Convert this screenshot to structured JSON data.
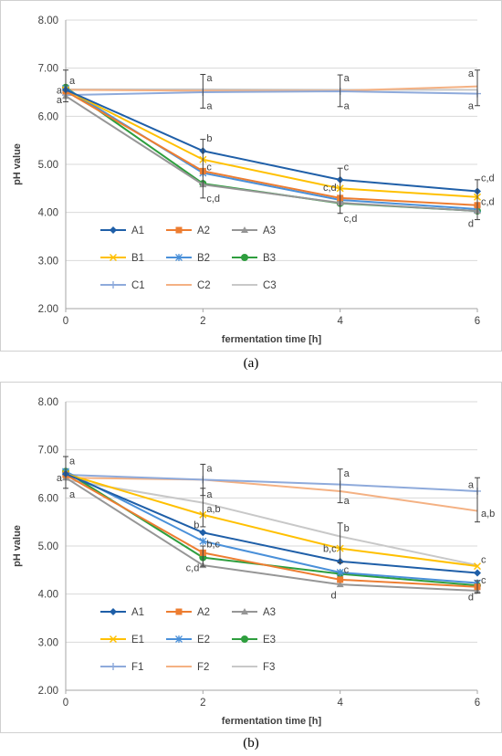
{
  "chart_data": [
    {
      "type": "line",
      "panel_label": "(a)",
      "xlabel": "fermentation time [h]",
      "ylabel": "pH value",
      "x": [
        0,
        2,
        4,
        6
      ],
      "x_tick_labels": [
        "0",
        "2",
        "4",
        "6"
      ],
      "ylim": [
        2.0,
        8.0
      ],
      "y_tick_labels": [
        "2.00",
        "3.00",
        "4.00",
        "5.00",
        "6.00",
        "7.00",
        "8.00"
      ],
      "grid": "horizontal",
      "legend_placement": "inside bottom-left, 3 columns",
      "series": [
        {
          "name": "A1",
          "color": "#1f5fa8",
          "marker": "diamond",
          "values": [
            6.55,
            5.28,
            4.68,
            4.44
          ]
        },
        {
          "name": "A2",
          "color": "#ed7d31",
          "marker": "square",
          "values": [
            6.52,
            4.86,
            4.3,
            4.15
          ]
        },
        {
          "name": "A3",
          "color": "#969696",
          "marker": "triangle",
          "values": [
            6.42,
            4.58,
            4.2,
            4.03
          ]
        },
        {
          "name": "B1",
          "color": "#ffc000",
          "marker": "x",
          "values": [
            6.55,
            5.1,
            4.5,
            4.32
          ]
        },
        {
          "name": "B2",
          "color": "#4a90d9",
          "marker": "star",
          "values": [
            6.58,
            4.82,
            4.26,
            4.07
          ]
        },
        {
          "name": "B3",
          "color": "#2e9e3e",
          "marker": "circle",
          "values": [
            6.6,
            4.6,
            4.19,
            4.03
          ]
        },
        {
          "name": "C1",
          "color": "#8eaadb",
          "marker": "plus",
          "values": [
            6.44,
            6.5,
            6.52,
            6.47
          ]
        },
        {
          "name": "C2",
          "color": "#f4b183",
          "marker": "none",
          "values": [
            6.55,
            6.53,
            6.53,
            6.62
          ]
        },
        {
          "name": "C3",
          "color": "#c8c8c8",
          "marker": "none",
          "values": [
            6.56,
            6.56,
            6.55,
            6.55
          ]
        }
      ],
      "error_bars": [
        {
          "x": 0,
          "low": 6.3,
          "high": 6.96
        },
        {
          "x": 2,
          "low": 6.17,
          "high": 6.87
        },
        {
          "x": 4,
          "low": 6.2,
          "high": 6.86
        },
        {
          "x": 6,
          "low": 6.22,
          "high": 6.96
        },
        {
          "x": 2,
          "low": 4.3,
          "high": 5.52
        },
        {
          "x": 4,
          "low": 3.98,
          "high": 4.92
        },
        {
          "x": 6,
          "low": 3.85,
          "high": 4.68
        }
      ],
      "annotations": [
        {
          "text": "a",
          "x": 0,
          "y": 6.75,
          "side": "right"
        },
        {
          "text": "a",
          "x": 0,
          "y": 6.55,
          "side": "left"
        },
        {
          "text": "a",
          "x": 0,
          "y": 6.35,
          "side": "left"
        },
        {
          "text": "a",
          "x": 2,
          "y": 6.8,
          "side": "right"
        },
        {
          "text": "a",
          "x": 2,
          "y": 6.22,
          "side": "right"
        },
        {
          "text": "a",
          "x": 4,
          "y": 6.8,
          "side": "right"
        },
        {
          "text": "a",
          "x": 4,
          "y": 6.22,
          "side": "right"
        },
        {
          "text": "a",
          "x": 6,
          "y": 6.9,
          "side": "left"
        },
        {
          "text": "a",
          "x": 6,
          "y": 6.22,
          "side": "left"
        },
        {
          "text": "b",
          "x": 2,
          "y": 5.55,
          "side": "right"
        },
        {
          "text": "c",
          "x": 2,
          "y": 4.95,
          "side": "right"
        },
        {
          "text": "c,d",
          "x": 2,
          "y": 4.3,
          "side": "right"
        },
        {
          "text": "c",
          "x": 4,
          "y": 4.95,
          "side": "right"
        },
        {
          "text": "c,d",
          "x": 4,
          "y": 4.53,
          "side": "left"
        },
        {
          "text": "c,d",
          "x": 4,
          "y": 3.88,
          "side": "right"
        },
        {
          "text": "c,d",
          "x": 6,
          "y": 4.72,
          "side": "right"
        },
        {
          "text": "c,d",
          "x": 6,
          "y": 4.23,
          "side": "right"
        },
        {
          "text": "d",
          "x": 6,
          "y": 3.78,
          "side": "left"
        }
      ]
    },
    {
      "type": "line",
      "panel_label": "(b)",
      "xlabel": "fermentation time [h]",
      "ylabel": "pH value",
      "x": [
        0,
        2,
        4,
        6
      ],
      "x_tick_labels": [
        "0",
        "2",
        "4",
        "6"
      ],
      "ylim": [
        2.0,
        8.0
      ],
      "y_tick_labels": [
        "2.00",
        "3.00",
        "4.00",
        "5.00",
        "6.00",
        "7.00",
        "8.00"
      ],
      "grid": "horizontal",
      "legend_placement": "inside bottom-left, 3 columns",
      "series": [
        {
          "name": "A1",
          "color": "#1f5fa8",
          "marker": "diamond",
          "values": [
            6.5,
            5.28,
            4.68,
            4.44
          ]
        },
        {
          "name": "A2",
          "color": "#ed7d31",
          "marker": "square",
          "values": [
            6.48,
            4.86,
            4.3,
            4.15
          ]
        },
        {
          "name": "A3",
          "color": "#969696",
          "marker": "triangle",
          "values": [
            6.42,
            4.6,
            4.2,
            4.07
          ]
        },
        {
          "name": "E1",
          "color": "#ffc000",
          "marker": "x",
          "values": [
            6.5,
            5.65,
            4.95,
            4.58
          ]
        },
        {
          "name": "E2",
          "color": "#4a90d9",
          "marker": "star",
          "values": [
            6.55,
            5.1,
            4.45,
            4.23
          ]
        },
        {
          "name": "E3",
          "color": "#2e9e3e",
          "marker": "circle",
          "values": [
            6.55,
            4.76,
            4.42,
            4.18
          ]
        },
        {
          "name": "F1",
          "color": "#8eaadb",
          "marker": "plus",
          "values": [
            6.48,
            6.38,
            6.28,
            6.14
          ]
        },
        {
          "name": "F2",
          "color": "#f4b183",
          "marker": "none",
          "values": [
            6.42,
            6.38,
            6.14,
            5.73
          ]
        },
        {
          "name": "F3",
          "color": "#c8c8c8",
          "marker": "none",
          "values": [
            6.38,
            5.9,
            5.2,
            4.6
          ]
        }
      ],
      "error_bars": [
        {
          "x": 0,
          "low": 6.2,
          "high": 6.86
        },
        {
          "x": 2,
          "low": 6.05,
          "high": 6.7
        },
        {
          "x": 2,
          "low": 5.4,
          "high": 6.2
        },
        {
          "x": 4,
          "low": 5.9,
          "high": 6.6
        },
        {
          "x": 4,
          "low": 4.65,
          "high": 5.48
        },
        {
          "x": 6,
          "low": 5.5,
          "high": 6.42
        },
        {
          "x": 2,
          "low": 4.58,
          "high": 5.0
        },
        {
          "x": 6,
          "low": 4.02,
          "high": 4.28
        }
      ],
      "annotations": [
        {
          "text": "a",
          "x": 0,
          "y": 6.78,
          "side": "right"
        },
        {
          "text": "a",
          "x": 0,
          "y": 6.42,
          "side": "left"
        },
        {
          "text": "a",
          "x": 0,
          "y": 6.08,
          "side": "right"
        },
        {
          "text": "a",
          "x": 2,
          "y": 6.62,
          "side": "right"
        },
        {
          "text": "a",
          "x": 2,
          "y": 6.08,
          "side": "right"
        },
        {
          "text": "a,b",
          "x": 2,
          "y": 5.78,
          "side": "right"
        },
        {
          "text": "b",
          "x": 2,
          "y": 5.45,
          "side": "left"
        },
        {
          "text": "b,c",
          "x": 2,
          "y": 5.05,
          "side": "right"
        },
        {
          "text": "c,d",
          "x": 2,
          "y": 4.55,
          "side": "left"
        },
        {
          "text": "a",
          "x": 4,
          "y": 6.52,
          "side": "right"
        },
        {
          "text": "a",
          "x": 4,
          "y": 5.95,
          "side": "right"
        },
        {
          "text": "b",
          "x": 4,
          "y": 5.38,
          "side": "right"
        },
        {
          "text": "b,c",
          "x": 4,
          "y": 4.95,
          "side": "left"
        },
        {
          "text": "c",
          "x": 4,
          "y": 4.52,
          "side": "right"
        },
        {
          "text": "d",
          "x": 4,
          "y": 3.98,
          "side": "left"
        },
        {
          "text": "a",
          "x": 6,
          "y": 6.28,
          "side": "left"
        },
        {
          "text": "a,b",
          "x": 6,
          "y": 5.68,
          "side": "right"
        },
        {
          "text": "c",
          "x": 6,
          "y": 4.72,
          "side": "right"
        },
        {
          "text": "c",
          "x": 6,
          "y": 4.3,
          "side": "right"
        },
        {
          "text": "d",
          "x": 6,
          "y": 3.95,
          "side": "left"
        }
      ]
    }
  ]
}
